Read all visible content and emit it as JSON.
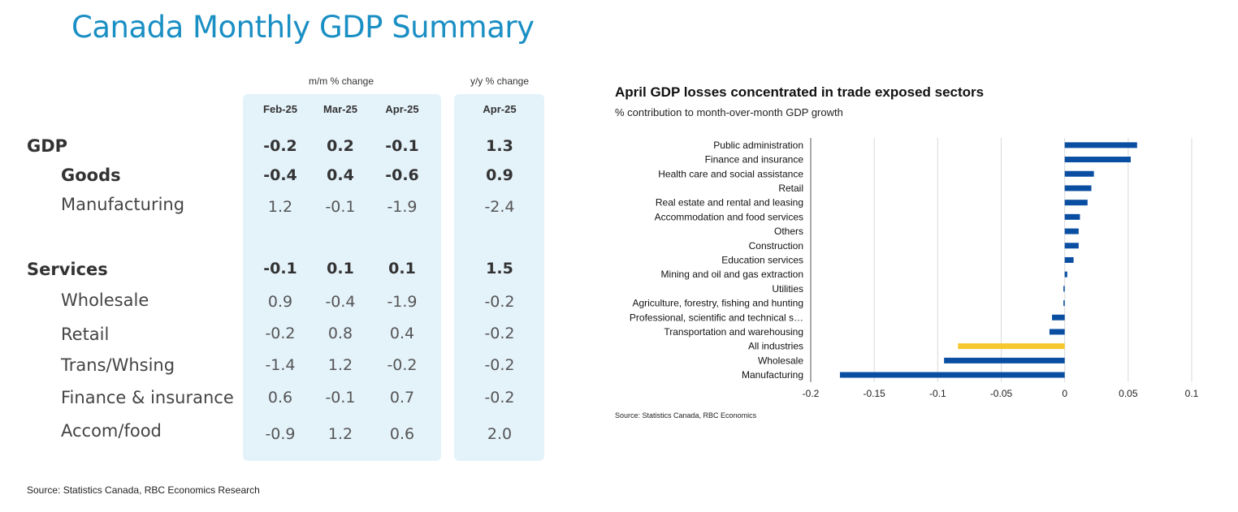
{
  "title": "Canada Monthly GDP Summary",
  "table": {
    "mm_header": "m/m % change",
    "yy_header": "y/y % change",
    "columns": [
      "Feb-25",
      "Mar-25",
      "Apr-25",
      "Apr-25"
    ],
    "rows": [
      {
        "label": "GDP",
        "values": [
          "-0.2",
          "0.2",
          "-0.1",
          "1.3"
        ]
      },
      {
        "label": "Goods",
        "values": [
          "-0.4",
          "0.4",
          "-0.6",
          "0.9"
        ]
      },
      {
        "label": "Manufacturing",
        "values": [
          "1.2",
          "-0.1",
          "-1.9",
          "-2.4"
        ]
      },
      {
        "label": "Services",
        "values": [
          "-0.1",
          "0.1",
          "0.1",
          "1.5"
        ]
      },
      {
        "label": "Wholesale",
        "values": [
          "0.9",
          "-0.4",
          "-1.9",
          "-0.2"
        ]
      },
      {
        "label": "Retail",
        "values": [
          "-0.2",
          "0.8",
          "0.4",
          "-0.2"
        ]
      },
      {
        "label": "Trans/Whsing",
        "values": [
          "-1.4",
          "1.2",
          "-0.2",
          "-0.2"
        ]
      },
      {
        "label": "Finance & insurance",
        "values": [
          "0.6",
          "-0.1",
          "0.7",
          "-0.2"
        ]
      },
      {
        "label": "Accom/food",
        "values": [
          "-0.9",
          "1.2",
          "0.6",
          "2.0"
        ]
      }
    ],
    "source": "Source:  Statistics Canada, RBC Economics Research"
  },
  "chart_data": {
    "type": "bar",
    "orientation": "horizontal",
    "title": "April GDP losses concentrated in trade exposed sectors",
    "subtitle": "% contribution to month-over-month GDP growth",
    "categories": [
      "Public administration",
      "Finance and insurance",
      "Health care and social assistance",
      "Retail",
      "Real estate and rental and leasing",
      "Accommodation and food services",
      "Others",
      "Construction",
      "Education services",
      "Mining and oil and gas extraction",
      "Utilities",
      "Agriculture, forestry, fishing and hunting",
      "Professional, scientific and technical s…",
      "Transportation and warehousing",
      "All industries",
      "Wholesale",
      "Manufacturing"
    ],
    "values": [
      0.057,
      0.052,
      0.023,
      0.021,
      0.018,
      0.012,
      0.011,
      0.011,
      0.007,
      0.002,
      -0.001,
      -0.001,
      -0.01,
      -0.012,
      -0.084,
      -0.095,
      -0.177
    ],
    "highlight": "All industries",
    "xlim": [
      -0.2,
      0.1
    ],
    "xticks": [
      "-0.2",
      "-0.15",
      "-0.1",
      "-0.05",
      "0",
      "0.05",
      "0.1"
    ],
    "grid": true,
    "colors": {
      "bar": "#0a4ea2",
      "highlight": "#f7c72e",
      "grid": "#d9d9d9"
    },
    "source": "Source: Statistics Canada, RBC Economics"
  }
}
